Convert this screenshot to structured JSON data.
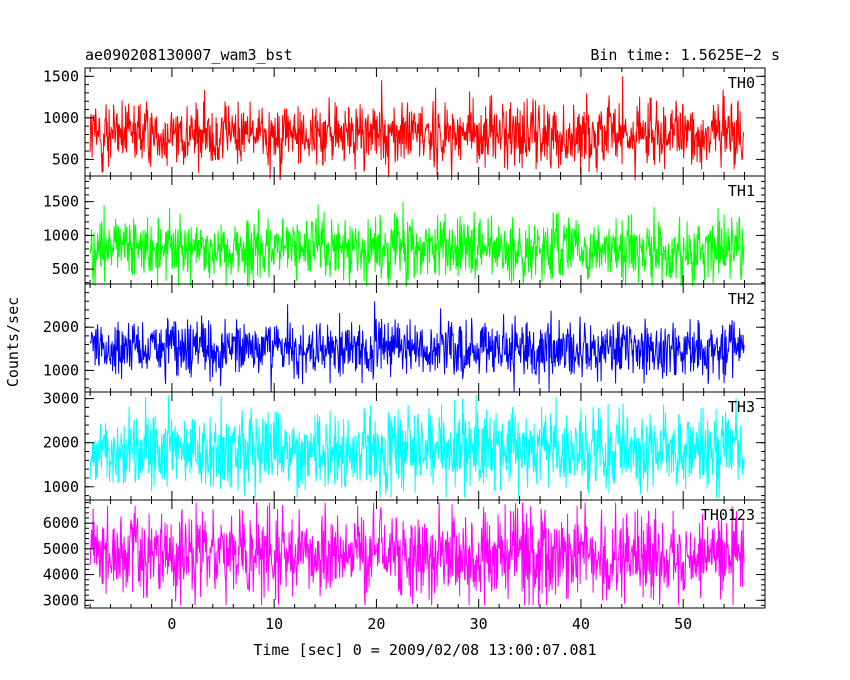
{
  "header": {
    "left_title": "ae090208130007_wam3_bst",
    "right_title": "Bin time: 1.5625E−2 s"
  },
  "axes": {
    "ylabel": "Counts/sec",
    "xlabel": "Time [sec] 0 = 2009/02/08 13:00:07.081"
  },
  "chart_data": {
    "type": "line",
    "x_range": [
      -8,
      56
    ],
    "xlim": [
      -8.5,
      58
    ],
    "x_ticks": [
      0,
      10,
      20,
      30,
      40,
      50
    ],
    "x_minor_step": 2,
    "panels": [
      {
        "name": "TH0",
        "color": "#ff0000",
        "ylim": [
          300,
          1600
        ],
        "ticks": [
          500,
          1000,
          1500
        ],
        "minor_step": 100,
        "base": 800,
        "spread": 200,
        "min": 250,
        "max": 1650
      },
      {
        "name": "TH1",
        "color": "#00ff00",
        "ylim": [
          280,
          1880
        ],
        "ticks": [
          500,
          1000,
          1500
        ],
        "minor_step": 100,
        "base": 800,
        "spread": 230,
        "min": 250,
        "max": 1850
      },
      {
        "name": "TH2",
        "color": "#0000ff",
        "ylim": [
          500,
          3000
        ],
        "ticks": [
          1000,
          2000
        ],
        "minor_step": 200,
        "base": 1500,
        "spread": 330,
        "min": 500,
        "max": 2950
      },
      {
        "name": "TH3",
        "color": "#00ffff",
        "ylim": [
          700,
          3150
        ],
        "ticks": [
          1000,
          2000,
          3000
        ],
        "minor_step": 200,
        "base": 1850,
        "spread": 450,
        "min": 750,
        "max": 3100
      },
      {
        "name": "TH0123",
        "color": "#ff00ff",
        "ylim": [
          2700,
          6900
        ],
        "ticks": [
          3000,
          4000,
          5000,
          6000
        ],
        "minor_step": 200,
        "base": 4700,
        "spread": 850,
        "min": 2800,
        "max": 6800
      }
    ]
  }
}
